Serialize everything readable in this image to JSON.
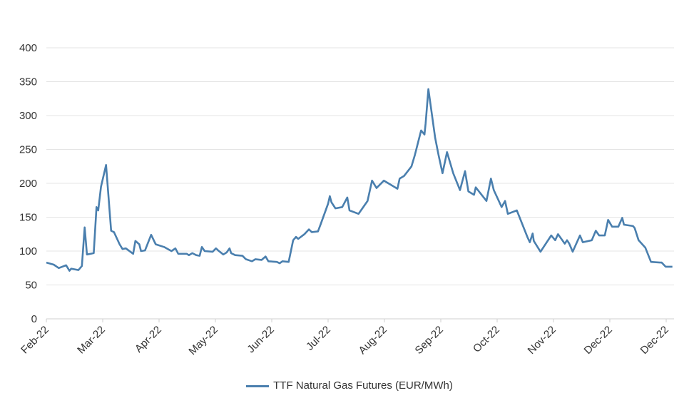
{
  "chart_data": {
    "type": "line",
    "title": "",
    "xlabel": "",
    "ylabel": "",
    "ylim": [
      0,
      400
    ],
    "yticks": [
      0,
      50,
      100,
      150,
      200,
      250,
      300,
      350,
      400
    ],
    "x_tick_labels": [
      "Feb-22",
      "Mar-22",
      "Apr-22",
      "May-22",
      "Jun-22",
      "Jul-22",
      "Aug-22",
      "Sep-22",
      "Oct-22",
      "Nov-22",
      "Dec-22",
      "Dec-22"
    ],
    "x_unit": "months since Feb-22",
    "grid": true,
    "legend_position": "bottom-center",
    "series": [
      {
        "name": "TTF Natural Gas Futures (EUR/MWh)",
        "color": "#4a7fae",
        "points": [
          [
            0,
            83
          ],
          [
            0.13,
            80
          ],
          [
            0.22,
            75
          ],
          [
            0.35,
            79
          ],
          [
            0.41,
            71
          ],
          [
            0.44,
            74
          ],
          [
            0.57,
            72
          ],
          [
            0.63,
            78
          ],
          [
            0.68,
            135
          ],
          [
            0.72,
            95
          ],
          [
            0.84,
            97
          ],
          [
            0.89,
            165
          ],
          [
            0.92,
            160
          ],
          [
            0.97,
            195
          ],
          [
            1.06,
            227
          ],
          [
            1.15,
            130
          ],
          [
            1.2,
            128
          ],
          [
            1.3,
            110
          ],
          [
            1.35,
            103
          ],
          [
            1.41,
            104
          ],
          [
            1.54,
            96
          ],
          [
            1.58,
            115
          ],
          [
            1.65,
            110
          ],
          [
            1.68,
            100
          ],
          [
            1.75,
            101
          ],
          [
            1.86,
            124
          ],
          [
            1.94,
            110
          ],
          [
            2.09,
            106
          ],
          [
            2.22,
            100
          ],
          [
            2.29,
            104
          ],
          [
            2.34,
            96
          ],
          [
            2.49,
            96
          ],
          [
            2.53,
            94
          ],
          [
            2.59,
            97
          ],
          [
            2.66,
            94
          ],
          [
            2.72,
            93
          ],
          [
            2.76,
            106
          ],
          [
            2.81,
            100
          ],
          [
            2.95,
            99
          ],
          [
            3.01,
            104
          ],
          [
            3.05,
            101
          ],
          [
            3.14,
            95
          ],
          [
            3.2,
            98
          ],
          [
            3.25,
            104
          ],
          [
            3.28,
            97
          ],
          [
            3.35,
            94
          ],
          [
            3.48,
            93
          ],
          [
            3.54,
            88
          ],
          [
            3.65,
            85
          ],
          [
            3.71,
            88
          ],
          [
            3.82,
            87
          ],
          [
            3.89,
            92
          ],
          [
            3.94,
            85
          ],
          [
            4.09,
            84
          ],
          [
            4.14,
            82
          ],
          [
            4.19,
            85
          ],
          [
            4.3,
            84
          ],
          [
            4.38,
            116
          ],
          [
            4.43,
            121
          ],
          [
            4.47,
            118
          ],
          [
            4.58,
            125
          ],
          [
            4.66,
            132
          ],
          [
            4.71,
            128
          ],
          [
            4.82,
            129
          ],
          [
            4.87,
            140
          ],
          [
            5.0,
            170
          ],
          [
            5.03,
            181
          ],
          [
            5.06,
            172
          ],
          [
            5.13,
            163
          ],
          [
            5.25,
            165
          ],
          [
            5.34,
            179
          ],
          [
            5.38,
            160
          ],
          [
            5.54,
            155
          ],
          [
            5.7,
            174
          ],
          [
            5.78,
            204
          ],
          [
            5.86,
            193
          ],
          [
            5.99,
            204
          ],
          [
            6.23,
            192
          ],
          [
            6.27,
            207
          ],
          [
            6.35,
            211
          ],
          [
            6.48,
            225
          ],
          [
            6.54,
            242
          ],
          [
            6.65,
            278
          ],
          [
            6.71,
            272
          ],
          [
            6.73,
            288
          ],
          [
            6.78,
            339
          ],
          [
            6.9,
            267
          ],
          [
            6.96,
            242
          ],
          [
            7.03,
            215
          ],
          [
            7.11,
            246
          ],
          [
            7.22,
            215
          ],
          [
            7.34,
            190
          ],
          [
            7.43,
            218
          ],
          [
            7.49,
            188
          ],
          [
            7.59,
            183
          ],
          [
            7.62,
            194
          ],
          [
            7.81,
            174
          ],
          [
            7.89,
            207
          ],
          [
            7.94,
            190
          ],
          [
            8.08,
            165
          ],
          [
            8.14,
            174
          ],
          [
            8.19,
            155
          ],
          [
            8.35,
            160
          ],
          [
            8.54,
            120
          ],
          [
            8.58,
            113
          ],
          [
            8.63,
            126
          ],
          [
            8.65,
            115
          ],
          [
            8.77,
            99
          ],
          [
            8.96,
            123
          ],
          [
            9.03,
            116
          ],
          [
            9.08,
            125
          ],
          [
            9.2,
            111
          ],
          [
            9.24,
            116
          ],
          [
            9.28,
            111
          ],
          [
            9.34,
            99
          ],
          [
            9.47,
            123
          ],
          [
            9.52,
            113
          ],
          [
            9.68,
            116
          ],
          [
            9.75,
            130
          ],
          [
            9.81,
            123
          ],
          [
            9.91,
            123
          ],
          [
            9.97,
            146
          ],
          [
            10.04,
            136
          ],
          [
            10.15,
            136
          ],
          [
            10.22,
            149
          ],
          [
            10.25,
            139
          ],
          [
            10.41,
            137
          ],
          [
            10.44,
            134
          ],
          [
            10.51,
            116
          ],
          [
            10.63,
            105
          ],
          [
            10.73,
            84
          ],
          [
            10.89,
            83
          ],
          [
            10.92,
            83
          ],
          [
            10.99,
            77
          ],
          [
            11.11,
            77
          ]
        ]
      }
    ]
  }
}
